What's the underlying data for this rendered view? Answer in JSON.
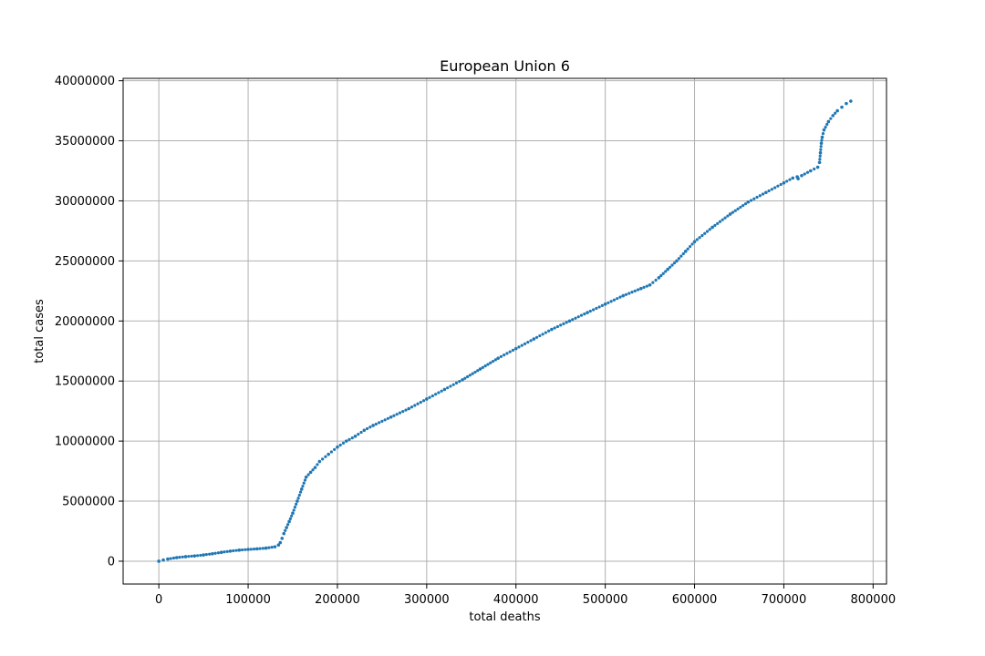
{
  "chart_data": {
    "type": "scatter",
    "title": "European Union 6",
    "xlabel": "total deaths",
    "ylabel": "total cases",
    "xlim": [
      -40000,
      815000
    ],
    "ylim": [
      -1900000,
      40200000
    ],
    "grid": true,
    "legend": "none",
    "marker_color": "#1f77b4",
    "xticks": [
      0,
      100000,
      200000,
      300000,
      400000,
      500000,
      600000,
      700000,
      800000
    ],
    "xtick_labels": [
      "0",
      "100000",
      "200000",
      "300000",
      "400000",
      "500000",
      "600000",
      "700000",
      "800000"
    ],
    "yticks": [
      0,
      5000000,
      10000000,
      15000000,
      20000000,
      25000000,
      30000000,
      35000000,
      40000000
    ],
    "ytick_labels": [
      "0",
      "5000000",
      "10000000",
      "15000000",
      "20000000",
      "25000000",
      "30000000",
      "35000000",
      "40000000"
    ],
    "series": [
      {
        "x": [
          0,
          5000,
          10000,
          20000,
          30000,
          40000,
          50000,
          60000,
          70000,
          80000,
          90000,
          100000,
          110000,
          120000,
          130000,
          134000,
          136000,
          138000,
          140000,
          143000,
          146000,
          150000,
          155000,
          160000,
          165000,
          170000,
          175000,
          180000,
          190000,
          200000,
          210000,
          220000,
          230000,
          240000,
          260000,
          280000,
          300000,
          320000,
          340000,
          360000,
          380000,
          400000,
          420000,
          440000,
          460000,
          480000,
          500000,
          520000,
          540000,
          550000,
          560000,
          570000,
          580000,
          590000,
          600000,
          620000,
          640000,
          660000,
          680000,
          700000,
          710000,
          715000,
          716000,
          720000,
          730000,
          738000,
          740000,
          741000,
          742000,
          743000,
          745000,
          750000,
          755000,
          760000,
          765000,
          770000,
          775000
        ],
        "y": [
          0,
          100000,
          180000,
          300000,
          380000,
          440000,
          520000,
          620000,
          740000,
          840000,
          920000,
          980000,
          1030000,
          1090000,
          1200000,
          1350000,
          1550000,
          1900000,
          2300000,
          2800000,
          3300000,
          4000000,
          5000000,
          6000000,
          7000000,
          7400000,
          7800000,
          8300000,
          8900000,
          9500000,
          10000000,
          10400000,
          10900000,
          11300000,
          12000000,
          12700000,
          13500000,
          14300000,
          15100000,
          16000000,
          16900000,
          17700000,
          18500000,
          19300000,
          20000000,
          20700000,
          21400000,
          22100000,
          22700000,
          23000000,
          23600000,
          24300000,
          25000000,
          25800000,
          26600000,
          27800000,
          28900000,
          29900000,
          30700000,
          31500000,
          31900000,
          32000000,
          31850000,
          32100000,
          32500000,
          32800000,
          33200000,
          34000000,
          34800000,
          35300000,
          35900000,
          36600000,
          37100000,
          37500000,
          37800000,
          38100000,
          38300000
        ]
      }
    ]
  }
}
